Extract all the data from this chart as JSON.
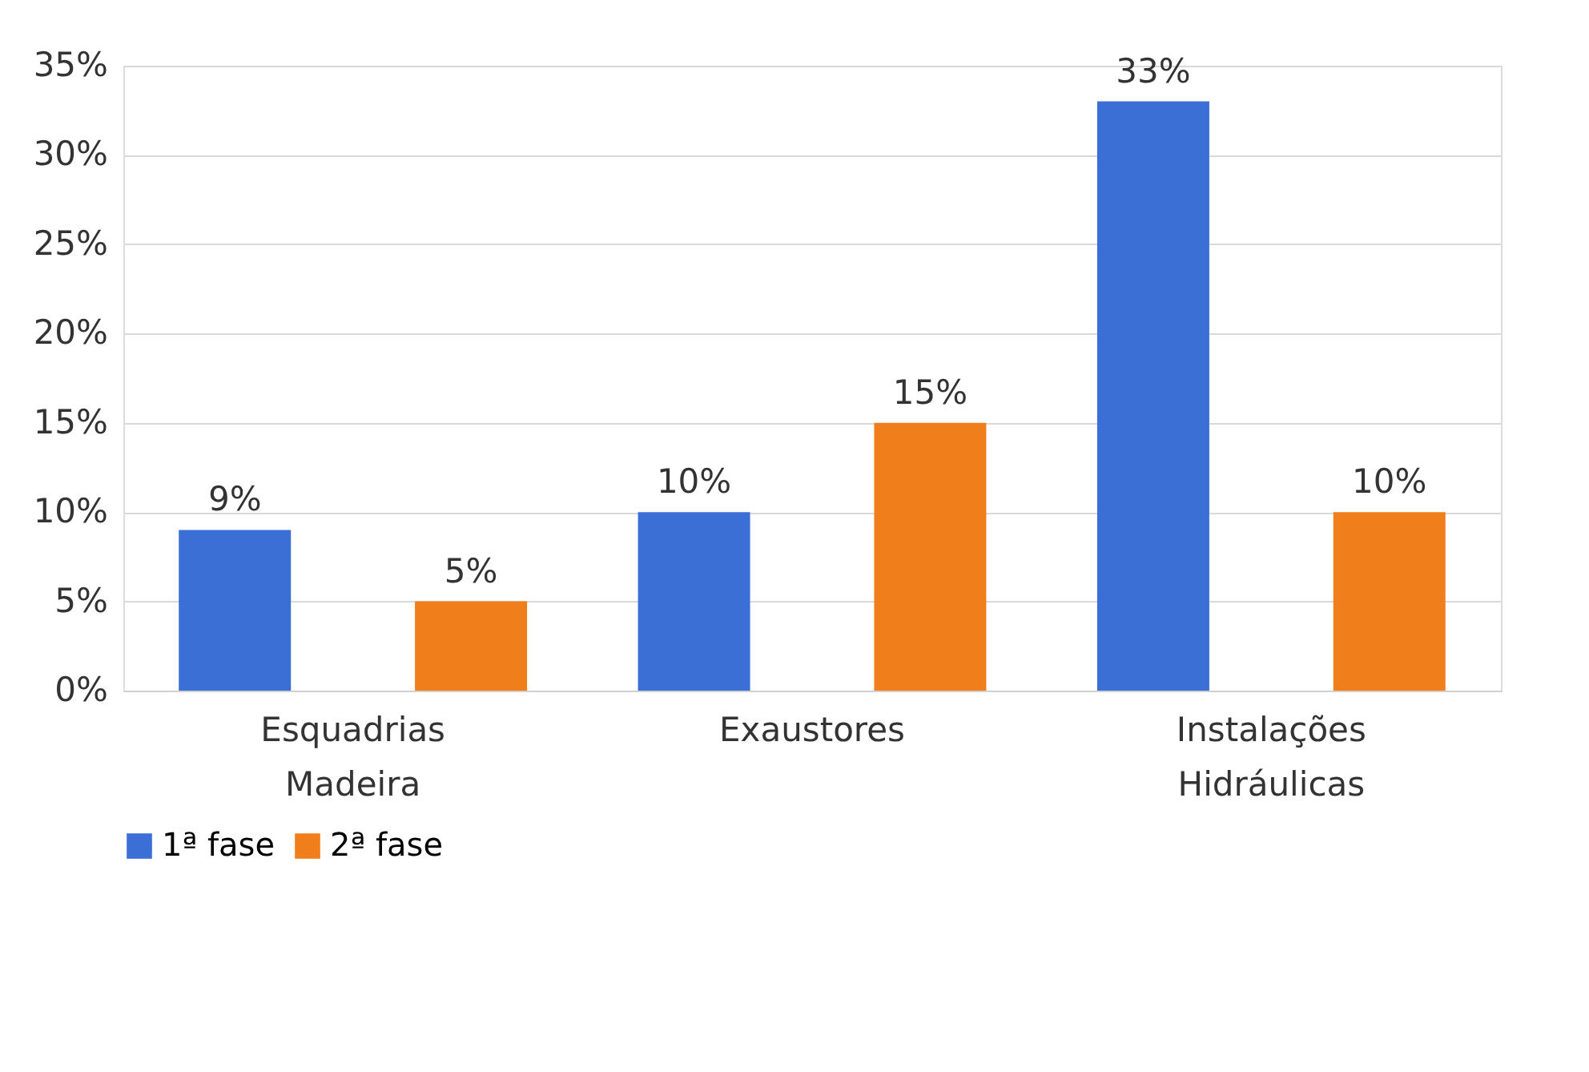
{
  "chart_data": {
    "type": "bar",
    "categories": [
      "Esquadrias Madeira",
      "Exaustores",
      "Instalações Hidráulicas"
    ],
    "series": [
      {
        "name": "1ª fase",
        "color": "#3c6fd6",
        "values": [
          9,
          10,
          33
        ],
        "value_labels": [
          "9%",
          "10%",
          "33%"
        ]
      },
      {
        "name": "2ª fase",
        "color": "#f07e1b",
        "values": [
          5,
          15,
          10
        ],
        "value_labels": [
          "5%",
          "15%",
          "10%"
        ]
      }
    ],
    "ylim": [
      0,
      35
    ],
    "yticks": [
      {
        "value": 0,
        "label": "0%"
      },
      {
        "value": 5,
        "label": "5%"
      },
      {
        "value": 10,
        "label": "10%"
      },
      {
        "value": 15,
        "label": "15%"
      },
      {
        "value": 20,
        "label": "20%"
      },
      {
        "value": 25,
        "label": "25%"
      },
      {
        "value": 30,
        "label": "30%"
      },
      {
        "value": 35,
        "label": "35%"
      }
    ],
    "grid": "y",
    "legend": "bottom"
  }
}
